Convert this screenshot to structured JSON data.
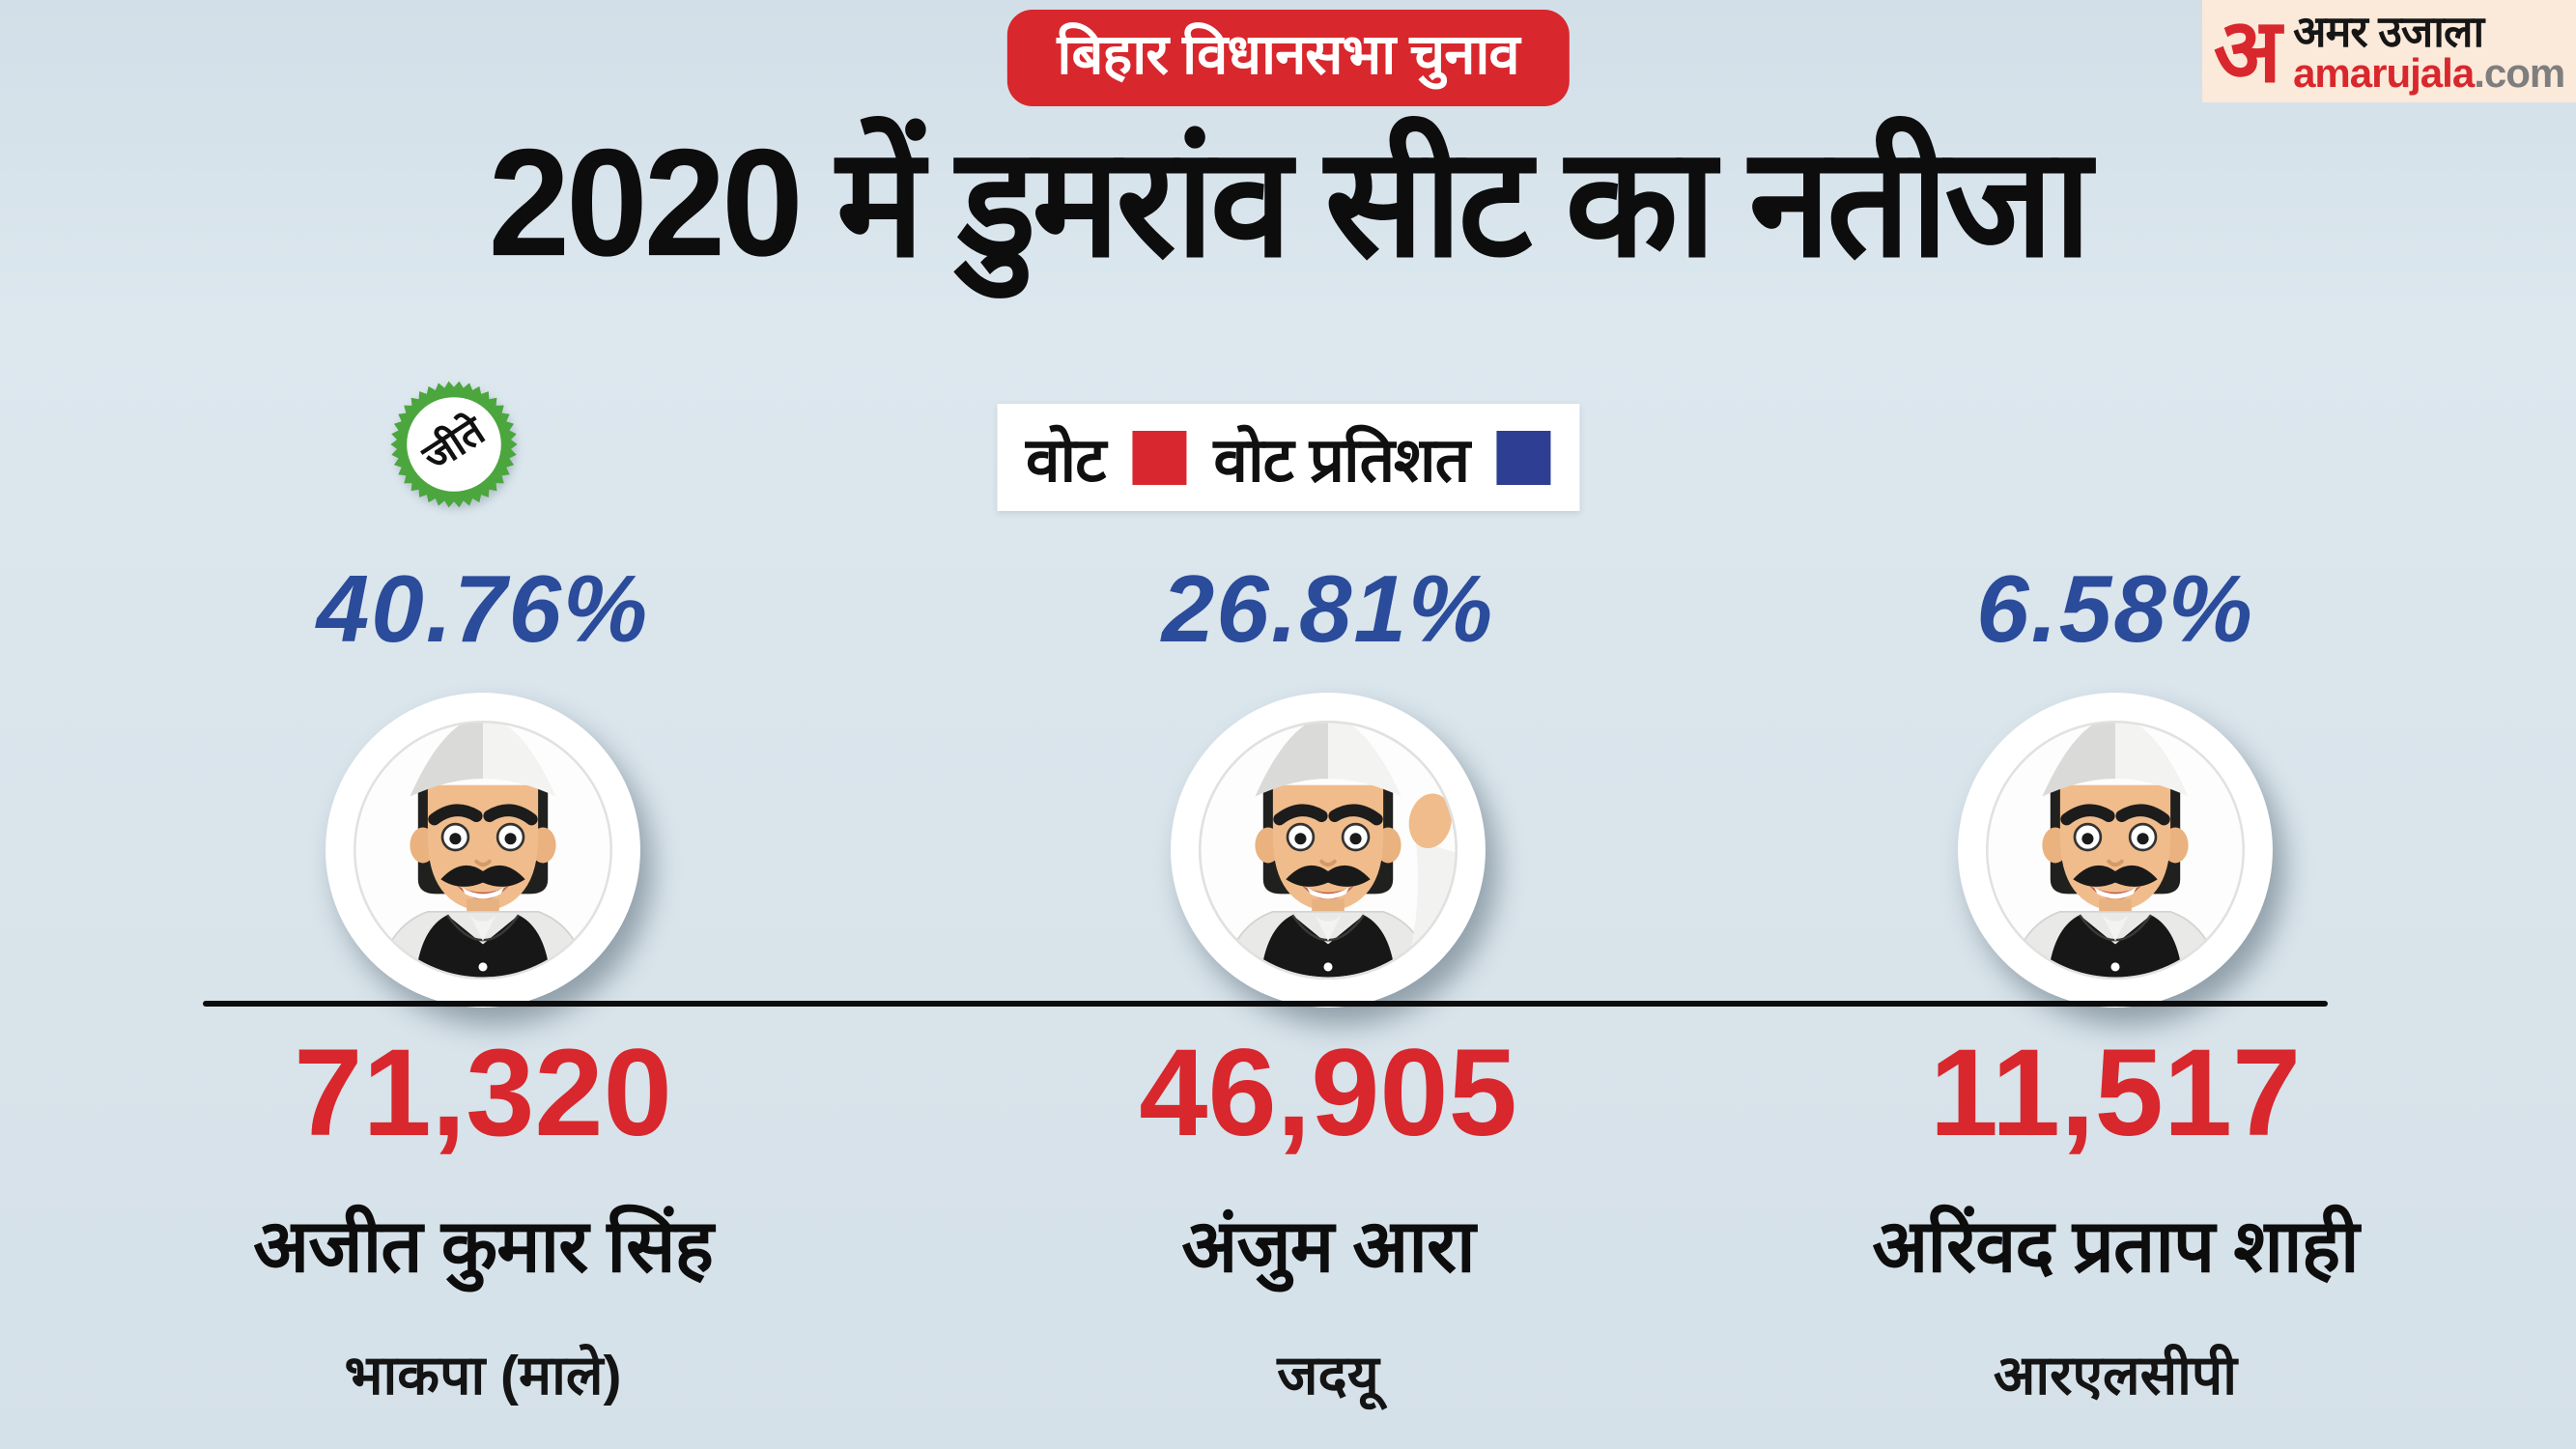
{
  "header": {
    "category_badge": "बिहार विधानसभा चुनाव",
    "title": "2020 में डुमरांव सीट का नतीजा"
  },
  "logo": {
    "monogram": "अ",
    "brand_hindi": "अमर उजाला",
    "brand_latin": "amarujala",
    "brand_tld": ".com"
  },
  "winner_seal_label": "जीते",
  "legend": {
    "votes_label": "वोट",
    "percent_label": "वोट प्रतिशत",
    "votes_color": "#d8272e",
    "percent_color": "#2d3e93"
  },
  "chart_data": {
    "type": "table",
    "title": "2020 में डुमरांव सीट का नतीजा",
    "context_badge": "बिहार विधानसभा चुनाव",
    "legend": [
      {
        "label": "वोट",
        "color": "#d8272e"
      },
      {
        "label": "वोट प्रतिशत",
        "color": "#2d3e93"
      }
    ],
    "candidates": [
      {
        "name": "अजीत कुमार सिंह",
        "party": "भाकपा (माले)",
        "votes": "71,320",
        "votes_value": 71320,
        "vote_percent": "40.76%",
        "vote_percent_value": 40.76,
        "result": "जीते",
        "winner": true
      },
      {
        "name": "अंजुम आरा",
        "party": "जदयू",
        "votes": "46,905",
        "votes_value": 46905,
        "vote_percent": "26.81%",
        "vote_percent_value": 26.81,
        "result": "",
        "winner": false
      },
      {
        "name": "अरिंवद प्रताप शाही",
        "party": "आरएलसीपी",
        "votes": "11,517",
        "votes_value": 11517,
        "vote_percent": "6.58%",
        "vote_percent_value": 6.58,
        "result": "",
        "winner": false
      }
    ]
  },
  "colors": {
    "background": "#d9e4eb",
    "accent_red": "#d8272d",
    "accent_blue": "#2b4b9b",
    "seal_green": "#4ba63e",
    "text_black": "#0d0d0d",
    "logo_bg": "#fbe9d9"
  }
}
